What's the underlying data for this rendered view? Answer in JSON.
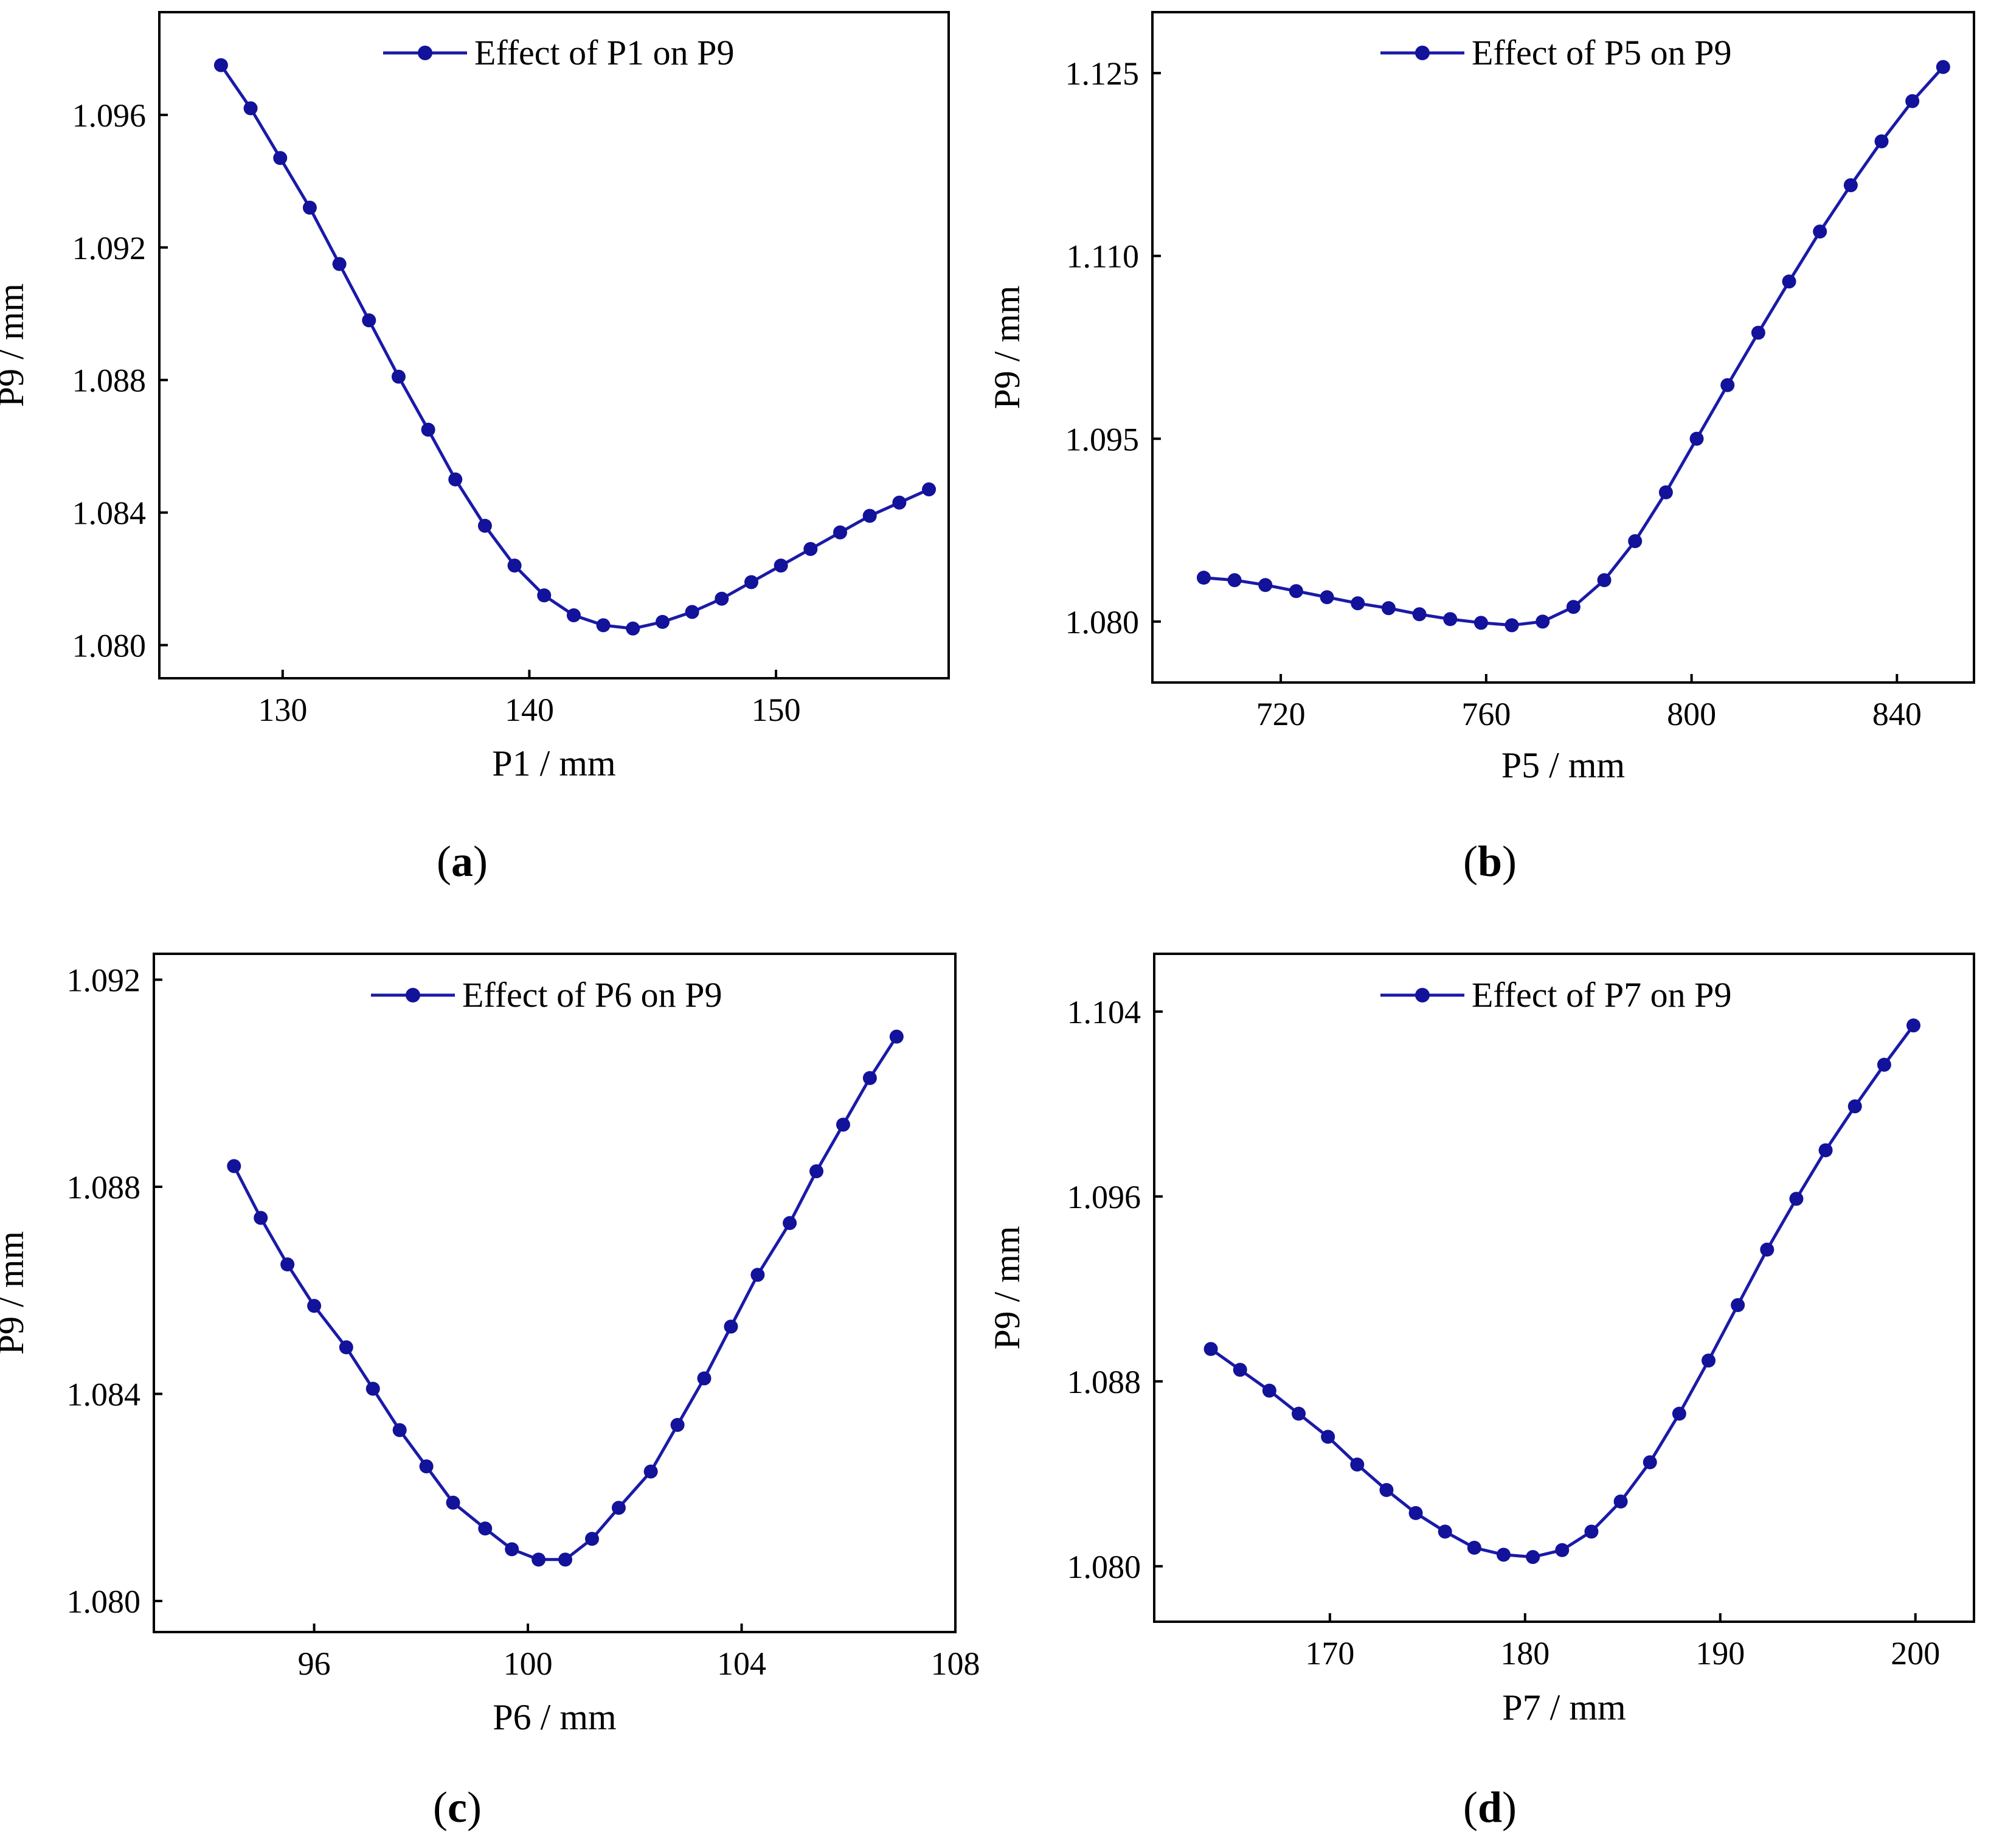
{
  "colors": {
    "series": "#1a1aa8",
    "marker": "#12129a",
    "axis": "#000000"
  },
  "chart_data": [
    {
      "type": "line",
      "panel": "a",
      "legend": "Effect of  P1 on P9",
      "legend_position": "top",
      "xlabel": "P1 / mm",
      "ylabel": "P9 / mm",
      "xlim": [
        125,
        157
      ],
      "ylim": [
        1.079,
        1.0991
      ],
      "xticks": [
        130,
        140,
        150
      ],
      "yticks": [
        1.08,
        1.084,
        1.088,
        1.092,
        1.096
      ],
      "xtick_labels": [
        "130",
        "140",
        "150"
      ],
      "ytick_labels": [
        "1.080",
        "1.084",
        "1.088",
        "1.092",
        "1.096"
      ],
      "x": [
        127.5,
        128.7,
        129.9,
        131.1,
        132.3,
        133.5,
        134.7,
        135.9,
        137.0,
        138.2,
        139.4,
        140.6,
        141.8,
        143.0,
        144.2,
        145.4,
        146.6,
        147.8,
        149.0,
        150.2,
        151.4,
        152.6,
        153.8,
        155.0,
        156.2
      ],
      "y": [
        1.0975,
        1.0962,
        1.0947,
        1.0932,
        1.0915,
        1.0898,
        1.0881,
        1.0865,
        1.085,
        1.0836,
        1.0824,
        1.0815,
        1.0809,
        1.0806,
        1.0805,
        1.0807,
        1.081,
        1.0814,
        1.0819,
        1.0824,
        1.0829,
        1.0834,
        1.0839,
        1.0843,
        1.0847
      ]
    },
    {
      "type": "line",
      "panel": "b",
      "legend": "Effect of  P5 on P9",
      "legend_position": "top",
      "xlabel": "P5 / mm",
      "ylabel": "P9 / mm",
      "xlim": [
        695,
        855
      ],
      "ylim": [
        1.075,
        1.13
      ],
      "xticks": [
        720,
        760,
        800,
        840
      ],
      "yticks": [
        1.08,
        1.095,
        1.11,
        1.125
      ],
      "xtick_labels": [
        "720",
        "760",
        "800",
        "840"
      ],
      "ytick_labels": [
        "1.080",
        "1.095",
        "1.110",
        "1.125"
      ],
      "x": [
        705,
        711,
        717,
        723,
        729,
        735,
        741,
        747,
        753,
        759,
        765,
        771,
        777,
        783,
        789,
        795,
        801,
        807,
        813,
        819,
        825,
        831,
        837,
        843,
        849
      ],
      "y": [
        1.0836,
        1.0834,
        1.083,
        1.0825,
        1.082,
        1.0815,
        1.0811,
        1.0806,
        1.0802,
        1.0799,
        1.0797,
        1.08,
        1.0812,
        1.0834,
        1.0866,
        1.0906,
        1.095,
        1.0994,
        1.1037,
        1.1079,
        1.112,
        1.1158,
        1.1194,
        1.1227,
        1.1255
      ]
    },
    {
      "type": "line",
      "panel": "c",
      "legend": "Effect of  P6 on P9",
      "legend_position": "top",
      "xlabel": "P6 / mm",
      "ylabel": "P9 / mm",
      "xlim": [
        93,
        108
      ],
      "ylim": [
        1.0794,
        1.0925
      ],
      "xticks": [
        96,
        100,
        104,
        108
      ],
      "yticks": [
        1.08,
        1.084,
        1.088,
        1.092
      ],
      "xtick_labels": [
        "96",
        "100",
        "104",
        "108"
      ],
      "ytick_labels": [
        "1.080",
        "1.084",
        "1.088",
        "1.092"
      ],
      "x": [
        94.5,
        95.0,
        95.5,
        96.0,
        96.6,
        97.1,
        97.6,
        98.1,
        98.6,
        99.2,
        99.7,
        100.2,
        100.7,
        101.2,
        101.7,
        102.3,
        102.8,
        103.3,
        103.8,
        104.3,
        104.9,
        105.4,
        105.9,
        106.4,
        106.9
      ],
      "y": [
        1.0884,
        1.0874,
        1.0865,
        1.0857,
        1.0849,
        1.0841,
        1.0833,
        1.0826,
        1.0819,
        1.0814,
        1.081,
        1.0808,
        1.0808,
        1.0812,
        1.0818,
        1.0825,
        1.0834,
        1.0843,
        1.0853,
        1.0863,
        1.0873,
        1.0883,
        1.0892,
        1.0901,
        1.0909
      ]
    },
    {
      "type": "line",
      "panel": "d",
      "legend": "Effect of  P7 on P9",
      "legend_position": "top",
      "xlabel": "P7 / mm",
      "ylabel": "P9 / mm",
      "xlim": [
        161,
        203
      ],
      "ylim": [
        1.0776,
        1.1065
      ],
      "xticks": [
        170,
        180,
        190,
        200
      ],
      "yticks": [
        1.08,
        1.088,
        1.096,
        1.104
      ],
      "xtick_labels": [
        "170",
        "180",
        "190",
        "200"
      ],
      "ytick_labels": [
        "1.080",
        "1.088",
        "1.096",
        "1.104"
      ],
      "x": [
        163.9,
        165.4,
        166.9,
        168.4,
        169.9,
        171.4,
        172.9,
        174.4,
        175.9,
        177.4,
        178.9,
        180.4,
        181.9,
        183.4,
        184.9,
        186.4,
        187.9,
        189.4,
        190.9,
        192.4,
        193.9,
        195.4,
        196.9,
        198.4,
        199.9
      ],
      "y": [
        1.0894,
        1.0885,
        1.0876,
        1.0866,
        1.0856,
        1.0844,
        1.0833,
        1.0823,
        1.0815,
        1.0808,
        1.0805,
        1.0804,
        1.0807,
        1.0815,
        1.0828,
        1.0845,
        1.0866,
        1.0889,
        1.0913,
        1.0937,
        1.0959,
        1.098,
        1.0999,
        1.1017,
        1.1034
      ]
    }
  ]
}
